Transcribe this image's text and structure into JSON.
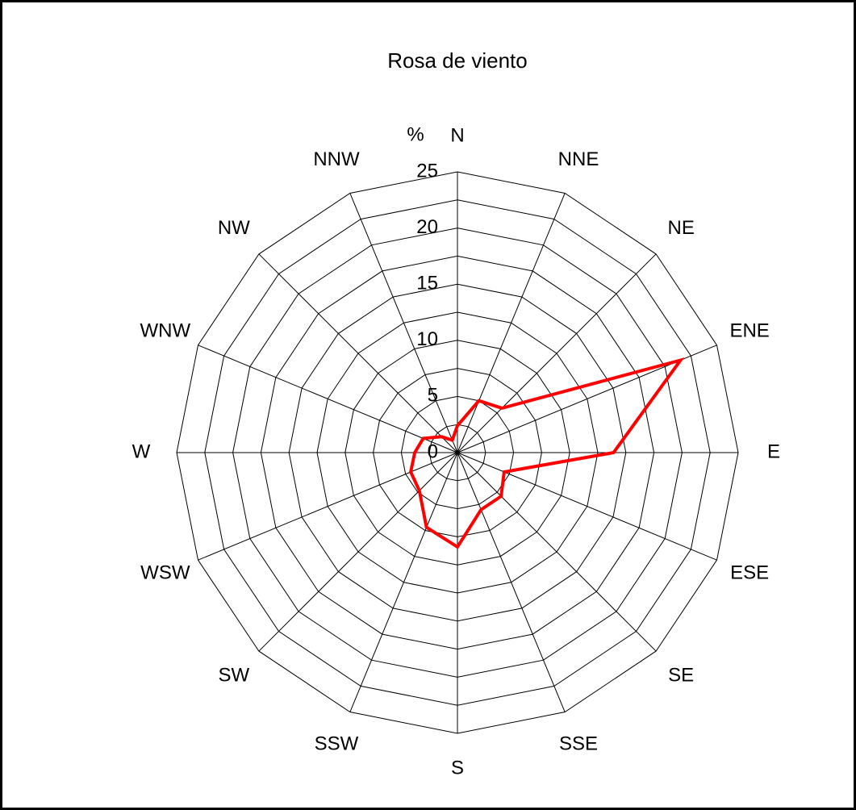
{
  "chart_data": {
    "type": "radar",
    "title": "Rosa de viento",
    "y_label": "%",
    "categories": [
      "N",
      "NNE",
      "NE",
      "ENE",
      "E",
      "ESE",
      "SE",
      "SSE",
      "S",
      "SSW",
      "SW",
      "WSW",
      "W",
      "WNW",
      "NW",
      "NNW"
    ],
    "series": [
      {
        "color": "#ff0000",
        "values": [
          2.4,
          5.0,
          5.6,
          21.5,
          13.9,
          4.5,
          5.5,
          5.5,
          8.4,
          7.2,
          4.8,
          4.5,
          3.8,
          3.3,
          2.0,
          1.2
        ]
      }
    ],
    "ylim": [
      0,
      25
    ],
    "yticks": [
      0,
      5,
      10,
      15,
      20,
      25
    ],
    "grid": true
  }
}
